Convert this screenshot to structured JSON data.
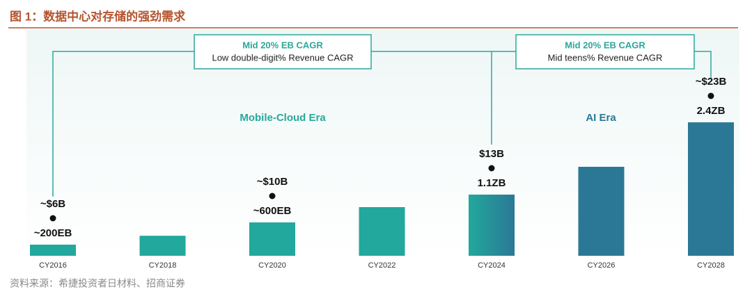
{
  "title": "图 1：数据中心对存储的强劲需求",
  "source": "资料来源：希捷投资者日材料、招商证券",
  "chart_data": {
    "type": "bar",
    "categories": [
      "CY2016",
      "CY2018",
      "CY2020",
      "CY2022",
      "CY2024",
      "CY2026",
      "CY2028"
    ],
    "values": [
      200,
      360,
      600,
      875,
      1100,
      1600,
      2400
    ],
    "value_labels": [
      "~200EB",
      null,
      "~600EB",
      null,
      "1.1ZB",
      null,
      "2.4ZB"
    ],
    "colors": [
      "#22a89c",
      "#22a89c",
      "#22a89c",
      "#22a89c",
      "#22a89c",
      "#2b7896",
      "#2b7896"
    ],
    "revenue": {
      "values": [
        6,
        null,
        10,
        null,
        13,
        null,
        23
      ],
      "value_labels": [
        "~$6B",
        null,
        "~$10B",
        null,
        "$13B",
        null,
        "~$23B"
      ]
    },
    "eras": [
      {
        "name": "Mobile-Cloud Era",
        "color": "#27a89b"
      },
      {
        "name": "AI Era",
        "color": "#2b7896"
      }
    ],
    "callouts": [
      {
        "title": "Mid 20% EB CAGR",
        "text": "Low double-digit% Revenue CAGR"
      },
      {
        "title": "Mid 20% EB CAGR",
        "text": "Mid teens% Revenue CAGR"
      }
    ]
  }
}
